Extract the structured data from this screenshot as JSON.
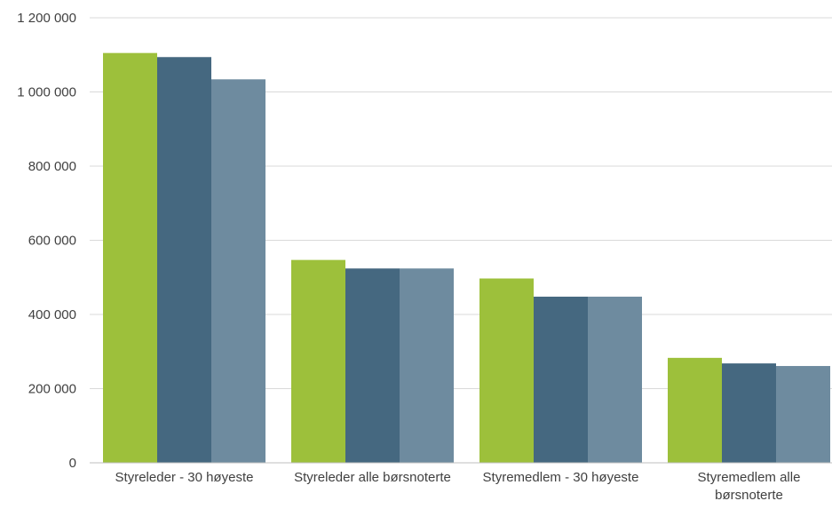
{
  "chart_data": {
    "type": "bar",
    "categories": [
      "Styreleder - 30 høyeste",
      "Styreleder alle børsnoterte",
      "Styremedlem - 30 høyeste",
      "Styremedlem alle børsnoterte"
    ],
    "category_lines": [
      [
        "Styreleder - 30 høyeste"
      ],
      [
        "Styreleder alle børsnoterte"
      ],
      [
        "Styremedlem - 30 høyeste"
      ],
      [
        "Styremedlem alle",
        "børsnoterte"
      ]
    ],
    "series": [
      {
        "values": [
          1105000,
          547000,
          497000,
          283000
        ],
        "color": "#9dc03b"
      },
      {
        "values": [
          1094000,
          524000,
          448000,
          268000
        ],
        "color": "#456880"
      },
      {
        "values": [
          1034000,
          524000,
          448000,
          261000
        ],
        "color": "#6e8b9f"
      }
    ],
    "title": "",
    "xlabel": "",
    "ylabel": "",
    "ylim": [
      0,
      1200000
    ],
    "yticks": [
      0,
      200000,
      400000,
      600000,
      800000,
      1000000,
      1200000
    ],
    "ytick_labels": [
      "0",
      "200 000",
      "400 000",
      "600 000",
      "800 000",
      "1 000 000",
      "1 200 000"
    ],
    "grid": true,
    "legend": "none",
    "colors": {
      "gridline": "#d9d9d9",
      "axis": "#bfbfbf",
      "text": "#404040"
    }
  }
}
